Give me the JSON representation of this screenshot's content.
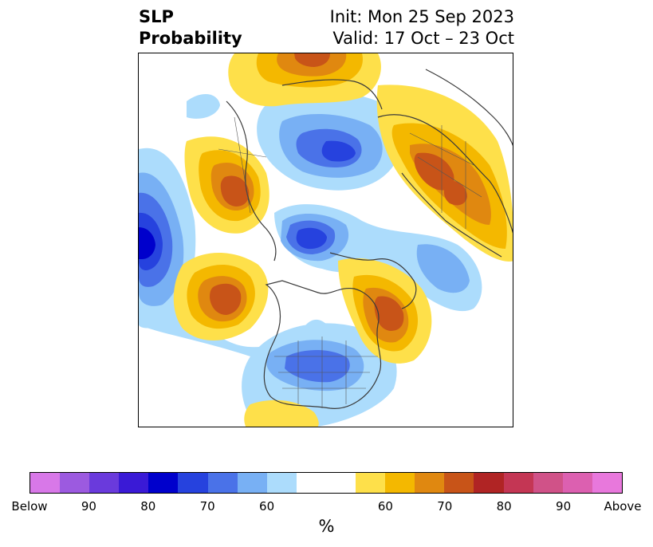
{
  "title": {
    "left_line1": "SLP",
    "left_line2": "Probability",
    "right_line1": "Init: Mon 25 Sep 2023",
    "right_line2": "Valid: 17 Oct – 23 Oct"
  },
  "colorbar": {
    "colors": [
      "#d878e8",
      "#9c5ae0",
      "#6a3adc",
      "#3a1ad6",
      "#0000cc",
      "#2642de",
      "#4a72e8",
      "#78b0f4",
      "#acdcfc",
      "#ffffff",
      "#ffffff",
      "#fee04a",
      "#f4b800",
      "#e08810",
      "#c85418",
      "#b02424",
      "#c43654",
      "#d05288",
      "#dc60b0",
      "#e878dc"
    ],
    "ticks": [
      "Below",
      "90",
      "80",
      "70",
      "60",
      "60",
      "70",
      "80",
      "90",
      "Above"
    ],
    "label": "%"
  },
  "map": {
    "projection": "north-polar-stereographic",
    "field": "sea level pressure probability",
    "below_colors": {
      "p50": "#acdcfc",
      "p60": "#78b0f4",
      "p70": "#4a72e8",
      "p80": "#2642de",
      "p90": "#0000cc"
    },
    "above_colors": {
      "p50": "#fee04a",
      "p60": "#f4b800",
      "p70": "#e08810",
      "p80": "#c85418"
    }
  }
}
